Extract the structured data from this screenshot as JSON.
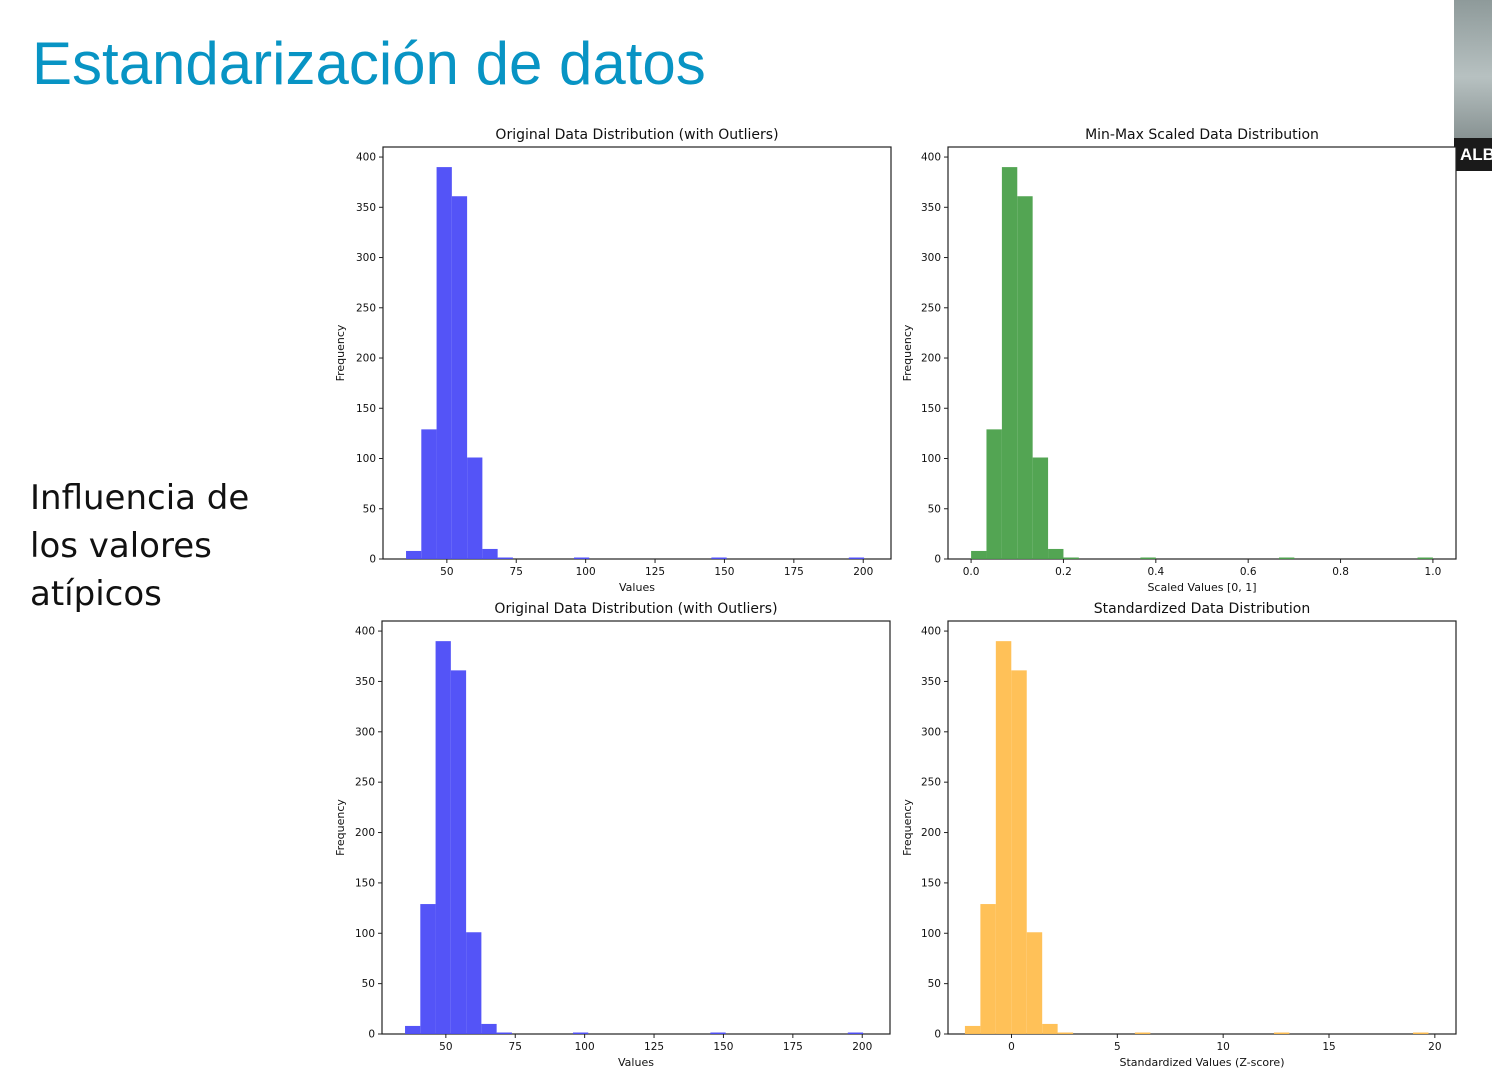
{
  "slide": {
    "title": "Estandarización de datos",
    "side_text": [
      "Influencia de",
      "los valores",
      "atípicos"
    ]
  },
  "webcam": {
    "name_label": "ALB"
  },
  "colors": {
    "title": "#0894c4",
    "blue": "#4b4bf7",
    "green": "#4aa04a",
    "orange": "#ffbe4f"
  },
  "chart_data": [
    {
      "type": "bar",
      "title": "Original Data Distribution (with Outliers)",
      "xlabel": "Values",
      "ylabel": "Frequency",
      "color": "#4b4bf7",
      "xlim": [
        27,
        210
      ],
      "ylim": [
        0,
        410
      ],
      "xticks": [
        50,
        75,
        100,
        125,
        150,
        175,
        200
      ],
      "xtick_labels": [
        "50",
        "75",
        "100",
        "125",
        "150",
        "175",
        "200"
      ],
      "yticks": [
        0,
        50,
        100,
        150,
        200,
        250,
        300,
        350,
        400
      ],
      "bin_edges": [
        35.3,
        40.8,
        46.3,
        51.8,
        57.3,
        62.8,
        68.3,
        73.8,
        79.3,
        84.8,
        90.3,
        95.8,
        101.3,
        106.8,
        112.3,
        117.8,
        123.3,
        128.8,
        134.3,
        139.8,
        145.3,
        150.8,
        156.3,
        161.8,
        167.3,
        172.8,
        178.3,
        183.8,
        189.3,
        194.8,
        200.3
      ],
      "values": [
        8,
        129,
        390,
        361,
        101,
        10,
        1,
        0,
        0,
        0,
        0,
        1,
        0,
        0,
        0,
        0,
        0,
        0,
        0,
        0,
        1,
        0,
        0,
        0,
        0,
        0,
        0,
        0,
        0,
        1
      ]
    },
    {
      "type": "bar",
      "title": "Min-Max Scaled Data Distribution",
      "xlabel": "Scaled Values [0, 1]",
      "ylabel": "Frequency",
      "color": "#4aa04a",
      "xlim": [
        -0.05,
        1.05
      ],
      "ylim": [
        0,
        410
      ],
      "xticks": [
        0.0,
        0.2,
        0.4,
        0.6,
        0.8,
        1.0
      ],
      "xtick_labels": [
        "0.0",
        "0.2",
        "0.4",
        "0.6",
        "0.8",
        "1.0"
      ],
      "yticks": [
        0,
        50,
        100,
        150,
        200,
        250,
        300,
        350,
        400
      ],
      "bin_edges": [
        0.0,
        0.0333,
        0.0667,
        0.1,
        0.1333,
        0.1667,
        0.2,
        0.2333,
        0.2667,
        0.3,
        0.3333,
        0.3667,
        0.4,
        0.4333,
        0.4667,
        0.5,
        0.5333,
        0.5667,
        0.6,
        0.6333,
        0.6667,
        0.7,
        0.7333,
        0.7667,
        0.8,
        0.8333,
        0.8667,
        0.9,
        0.9333,
        0.9667,
        1.0
      ],
      "values": [
        8,
        129,
        390,
        361,
        101,
        10,
        1,
        0,
        0,
        0,
        0,
        1,
        0,
        0,
        0,
        0,
        0,
        0,
        0,
        0,
        1,
        0,
        0,
        0,
        0,
        0,
        0,
        0,
        0,
        1
      ]
    },
    {
      "type": "bar",
      "title": "Original Data Distribution (with Outliers)",
      "xlabel": "Values",
      "ylabel": "Frequency",
      "color": "#4b4bf7",
      "xlim": [
        27,
        210
      ],
      "ylim": [
        0,
        410
      ],
      "xticks": [
        50,
        75,
        100,
        125,
        150,
        175,
        200
      ],
      "xtick_labels": [
        "50",
        "75",
        "100",
        "125",
        "150",
        "175",
        "200"
      ],
      "yticks": [
        0,
        50,
        100,
        150,
        200,
        250,
        300,
        350,
        400
      ],
      "bin_edges": [
        35.3,
        40.8,
        46.3,
        51.8,
        57.3,
        62.8,
        68.3,
        73.8,
        79.3,
        84.8,
        90.3,
        95.8,
        101.3,
        106.8,
        112.3,
        117.8,
        123.3,
        128.8,
        134.3,
        139.8,
        145.3,
        150.8,
        156.3,
        161.8,
        167.3,
        172.8,
        178.3,
        183.8,
        189.3,
        194.8,
        200.3
      ],
      "values": [
        8,
        129,
        390,
        361,
        101,
        10,
        1,
        0,
        0,
        0,
        0,
        1,
        0,
        0,
        0,
        0,
        0,
        0,
        0,
        0,
        1,
        0,
        0,
        0,
        0,
        0,
        0,
        0,
        0,
        1
      ]
    },
    {
      "type": "bar",
      "title": "Standardized Data Distribution",
      "xlabel": "Standardized Values (Z-score)",
      "ylabel": "Frequency",
      "color": "#ffbe4f",
      "xlim": [
        -3.0,
        21.0
      ],
      "ylim": [
        0,
        410
      ],
      "xticks": [
        0,
        5,
        10,
        15,
        20
      ],
      "xtick_labels": [
        "0",
        "5",
        "10",
        "15",
        "20"
      ],
      "yticks": [
        0,
        50,
        100,
        150,
        200,
        250,
        300,
        350,
        400
      ],
      "bin_edges": [
        -2.2,
        -1.47,
        -0.74,
        -0.01,
        0.72,
        1.45,
        2.18,
        2.91,
        3.64,
        4.37,
        5.1,
        5.83,
        6.56,
        7.29,
        8.02,
        8.75,
        9.48,
        10.21,
        10.94,
        11.67,
        12.4,
        13.13,
        13.86,
        14.59,
        15.32,
        16.05,
        16.78,
        17.51,
        18.24,
        18.97,
        19.7
      ],
      "values": [
        8,
        129,
        390,
        361,
        101,
        10,
        1,
        0,
        0,
        0,
        0,
        1,
        0,
        0,
        0,
        0,
        0,
        0,
        0,
        0,
        1,
        0,
        0,
        0,
        0,
        0,
        0,
        0,
        0,
        1
      ]
    }
  ]
}
